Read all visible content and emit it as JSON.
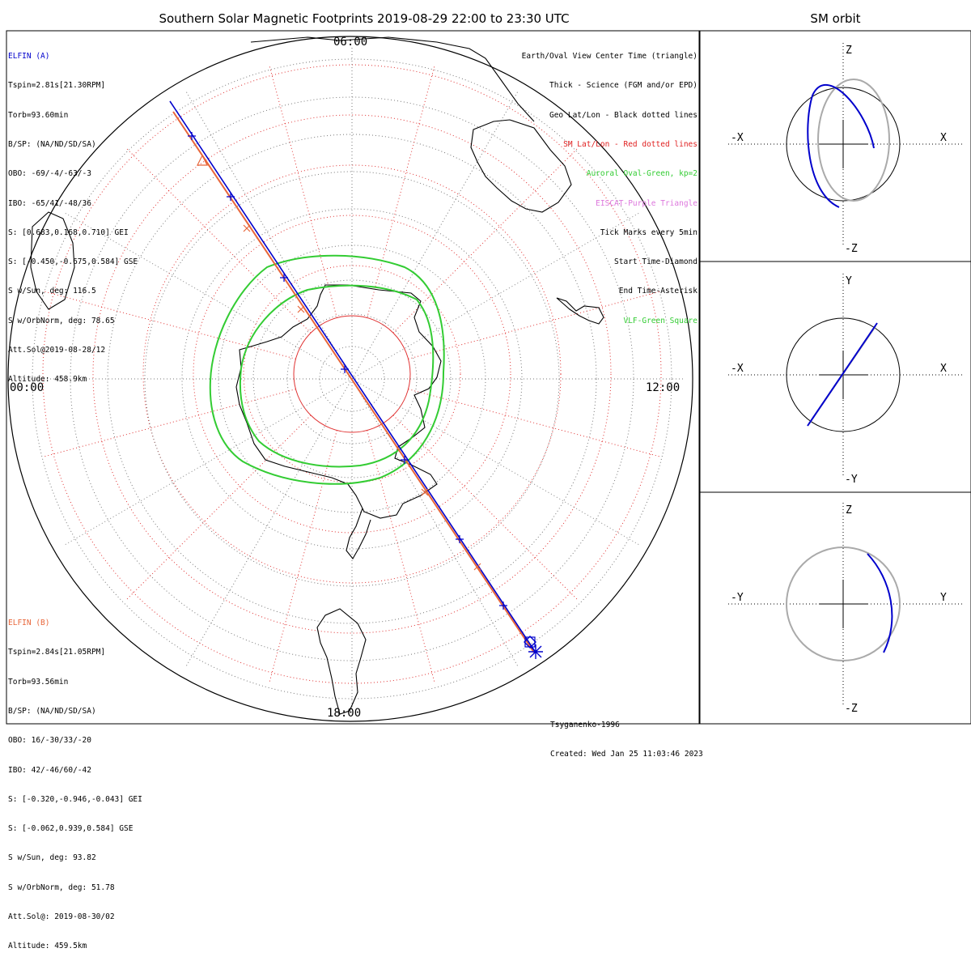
{
  "title": "Southern Solar Magnetic Footprints 2019-08-29 22:00 to 23:30 UTC",
  "orbit_title": "SM orbit",
  "colors": {
    "elfin_a": "#0000cc",
    "elfin_b": "#e8663a",
    "sm_grid": "#e03030",
    "geo_grid": "#000000",
    "auroral_oval": "#33cc33",
    "orbit_gray": "#aaaaaa"
  },
  "elfin_a": {
    "header": "ELFIN (A)",
    "lines": [
      "Tspin=2.81s[21.30RPM]",
      "Torb=93.60min",
      "B/SP: (NA/ND/SD/SA)",
      "OBO: -69/-4/-63/-3",
      "IBO: -65/41/-48/36",
      "S: [0.683,0.168,0.710] GEI",
      "S: [-0.450,-0.675,0.584] GSE",
      "S w/Sun, deg: 116.5",
      "S w/OrbNorm, deg: 78.65",
      "Att.Sol@2019-08-28/12",
      "Altitude: 458.9km"
    ]
  },
  "elfin_b": {
    "header": "ELFIN (B)",
    "lines": [
      "Tspin=2.84s[21.05RPM]",
      "Torb=93.56min",
      "B/SP: (NA/ND/SD/SA)",
      "OBO: 16/-30/33/-20",
      "IBO: 42/-46/60/-42",
      "S: [-0.320,-0.946,-0.043] GEI",
      "S: [-0.062,0.939,0.584] GSE",
      "S w/Sun, deg: 93.82",
      "S w/OrbNorm, deg: 51.78",
      "Att.Sol@: 2019-08-30/02",
      "Altitude: 459.5km"
    ]
  },
  "legend": [
    {
      "text": "Earth/Oval View Center Time (triangle)",
      "color": "#000000"
    },
    {
      "text": "Thick - Science (FGM and/or EPD)",
      "color": "#000000"
    },
    {
      "text": "Geo Lat/Lon - Black dotted lines",
      "color": "#000000"
    },
    {
      "text": "SM Lat/Lon - Red dotted lines",
      "color": "#e02020"
    },
    {
      "text": "Auroral Oval-Green, kp=2",
      "color": "#33cc33"
    },
    {
      "text": "EISCAT-Purple Triangle",
      "color": "#dd77dd"
    },
    {
      "text": "Tick Marks every 5min",
      "color": "#000000"
    },
    {
      "text": "Start Time-Diamond",
      "color": "#000000"
    },
    {
      "text": "End Time-Asterisk",
      "color": "#000000"
    },
    {
      "text": "VLF-Green Square",
      "color": "#33cc33"
    }
  ],
  "mlt_labels": {
    "left": "00:00",
    "right": "12:00",
    "top": "06:00",
    "bottom": "18:00"
  },
  "credit": {
    "line1": "Tsyganenko-1996",
    "line2": "Created: Wed Jan 25 11:03:46 2023"
  },
  "orbit_panels": [
    {
      "labels": {
        "top": "Z",
        "bottom": "-Z",
        "left": "-X",
        "right": "X"
      }
    },
    {
      "labels": {
        "top": "Y",
        "bottom": "-Y",
        "left": "-X",
        "right": "X"
      }
    },
    {
      "labels": {
        "top": "Z",
        "bottom": "-Z",
        "left": "-Y",
        "right": "Y"
      }
    }
  ],
  "chart_data": {
    "type": "scatter",
    "title": "Southern Solar Magnetic Footprints 2019-08-29 22:00 to 23:30 UTC",
    "series": [
      {
        "name": "ELFIN (A)",
        "color": "#0000cc"
      },
      {
        "name": "ELFIN (B)",
        "color": "#e8663a"
      }
    ]
  }
}
